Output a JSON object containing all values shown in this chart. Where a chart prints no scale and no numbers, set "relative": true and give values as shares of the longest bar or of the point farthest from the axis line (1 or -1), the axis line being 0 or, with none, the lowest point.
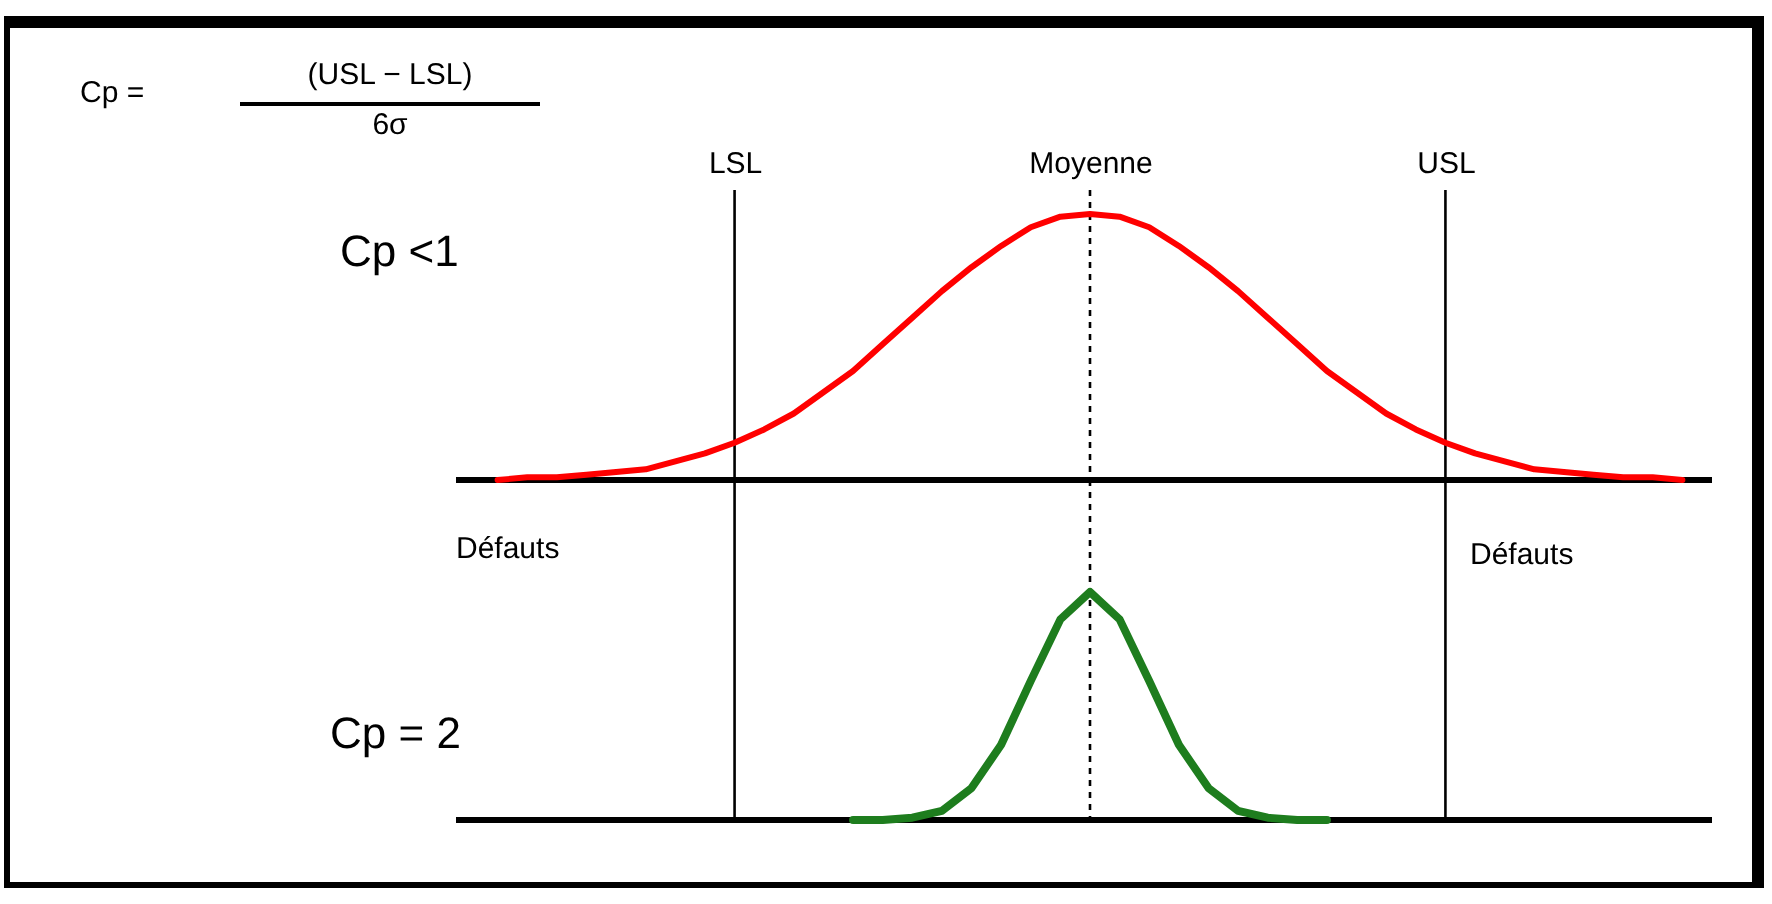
{
  "chart_data": [
    {
      "type": "line",
      "relative": true,
      "categories": [
        null,
        null,
        null,
        null,
        null,
        null,
        null,
        null,
        "LSL",
        null,
        null,
        null,
        null,
        null,
        null,
        null,
        null,
        null,
        null,
        null,
        "Moyenne",
        null,
        null,
        null,
        null,
        null,
        null,
        null,
        null,
        null,
        null,
        null,
        "USL",
        null,
        null,
        null,
        null,
        null,
        null,
        null,
        null
      ],
      "series": [
        {
          "color": "#ff0000",
          "values": [
            0,
            0.01,
            0.01,
            0.02,
            0.03,
            0.04,
            0.07,
            0.1,
            0.14,
            0.19,
            0.25,
            0.33,
            0.41,
            0.51,
            0.61,
            0.71,
            0.8,
            0.88,
            0.95,
            0.99,
            1,
            0.99,
            0.95,
            0.88,
            0.8,
            0.71,
            0.61,
            0.51,
            0.41,
            0.33,
            0.25,
            0.19,
            0.14,
            0.1,
            0.07,
            0.04,
            0.03,
            0.02,
            0.01,
            0.01,
            0
          ]
        }
      ],
      "ref_lines": [
        {
          "axis": "x",
          "value": "LSL",
          "line_style": "solid"
        },
        {
          "axis": "x",
          "value": "Moyenne",
          "line_style": "dotted"
        },
        {
          "axis": "x",
          "value": "USL",
          "line_style": "solid"
        }
      ],
      "annotations": [
        "Cp =",
        "(USL − LSL)",
        "6σ",
        "Cp <1",
        "Défauts",
        "Défauts"
      ]
    },
    {
      "type": "line",
      "relative": true,
      "tick_labels": false,
      "categories": [
        null,
        null,
        null,
        null,
        null,
        null,
        null,
        null,
        "LSL",
        null,
        null,
        null,
        null,
        null,
        null,
        null,
        null,
        null,
        null,
        null,
        "Moyenne",
        null,
        null,
        null,
        null,
        null,
        null,
        null,
        null,
        null,
        null,
        null,
        "USL",
        null,
        null,
        null,
        null,
        null,
        null,
        null,
        null
      ],
      "series": [
        {
          "color": "#1e7d1e",
          "values": [
            null,
            null,
            null,
            null,
            null,
            null,
            null,
            null,
            null,
            null,
            null,
            null,
            0,
            0,
            0.01,
            0.04,
            0.14,
            0.33,
            0.61,
            0.88,
            1,
            0.88,
            0.61,
            0.33,
            0.14,
            0.04,
            0.01,
            0,
            0,
            null,
            null,
            null,
            null,
            null,
            null,
            null,
            null,
            null,
            null,
            null,
            null
          ]
        }
      ],
      "ref_lines": [
        {
          "axis": "x",
          "value": "LSL",
          "line_style": "solid"
        },
        {
          "axis": "x",
          "value": "Moyenne",
          "line_style": "dotted"
        },
        {
          "axis": "x",
          "value": "USL",
          "line_style": "solid"
        }
      ],
      "annotations": [
        "Cp = 2"
      ]
    }
  ]
}
